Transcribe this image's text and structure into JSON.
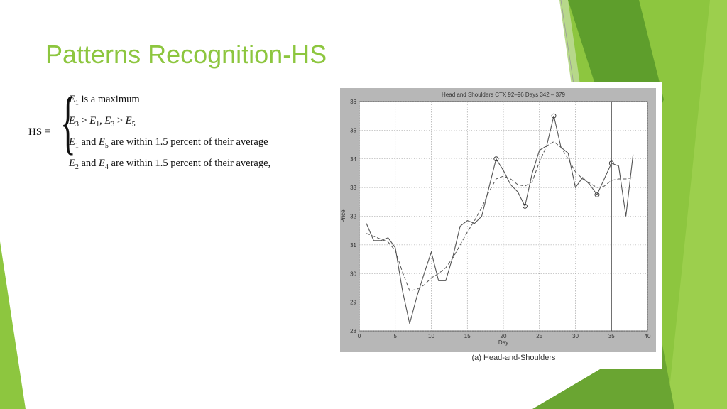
{
  "slide": {
    "title": "Patterns Recognition-HS",
    "accent_color": "#8dc63f",
    "accent_dark": "#5e9e2c"
  },
  "formula": {
    "lhs": "HS ≡",
    "conditions": [
      {
        "e1": "E",
        "s1": "1",
        "t1": " is a maximum"
      },
      {
        "e1": "E",
        "s1": "3",
        "t1": " > ",
        "e2": "E",
        "s2": "1",
        "t2": ", ",
        "e3": "E",
        "s3": "3",
        "t3": " > ",
        "e4": "E",
        "s4": "5"
      },
      {
        "e1": "E",
        "s1": "1",
        "t1": " and ",
        "e2": "E",
        "s2": "5",
        "t2": " are within 1.5 percent of their average"
      },
      {
        "e1": "E",
        "s1": "2",
        "t1": " and ",
        "e2": "E",
        "s2": "4",
        "t2": " are within 1.5 percent of their average,"
      }
    ]
  },
  "figure_caption": "(a) Head-and-Shoulders",
  "chart_data": {
    "type": "line",
    "title": "Head and Shoulders  CTX  92–96  Days 342 – 379",
    "xlabel": "Day",
    "ylabel": "Price",
    "xlim": [
      0,
      40
    ],
    "ylim": [
      28,
      36
    ],
    "xticks": [
      0,
      5,
      10,
      15,
      20,
      25,
      30,
      35,
      40
    ],
    "yticks": [
      28,
      29,
      30,
      31,
      32,
      33,
      34,
      35,
      36
    ],
    "grid": true,
    "series": [
      {
        "style": "solid",
        "x": [
          1,
          2,
          3,
          4,
          5,
          6,
          7,
          8,
          9,
          10,
          11,
          12,
          13,
          14,
          15,
          16,
          17,
          18,
          19,
          20,
          21,
          22,
          23,
          24,
          25,
          26,
          27,
          28,
          29,
          30,
          31,
          32,
          33,
          34,
          35,
          36,
          37,
          38
        ],
        "y": [
          31.75,
          31.15,
          31.15,
          31.25,
          30.9,
          29.4,
          28.25,
          29.2,
          30,
          30.75,
          29.75,
          29.75,
          30.6,
          31.65,
          31.85,
          31.75,
          32,
          33,
          34,
          33.6,
          33.1,
          32.85,
          32.35,
          33.5,
          34.3,
          34.45,
          35.5,
          34.4,
          34.2,
          33,
          33.35,
          33.1,
          32.75,
          33.3,
          33.85,
          33.75,
          32,
          34.15
        ]
      },
      {
        "style": "dashed",
        "x": [
          1,
          2,
          3,
          4,
          5,
          6,
          7,
          8,
          9,
          10,
          11,
          12,
          13,
          14,
          15,
          16,
          17,
          18,
          19,
          20,
          21,
          22,
          23,
          24,
          25,
          26,
          27,
          28,
          29,
          30,
          31,
          32,
          33,
          34,
          35,
          36,
          37,
          38
        ],
        "y": [
          31.4,
          31.3,
          31.2,
          31.1,
          30.8,
          30.05,
          29.4,
          29.45,
          29.6,
          29.85,
          30.0,
          30.2,
          30.55,
          31.0,
          31.45,
          31.85,
          32.3,
          32.85,
          33.3,
          33.4,
          33.3,
          33.1,
          33.05,
          33.2,
          33.9,
          34.45,
          34.6,
          34.4,
          34.0,
          33.55,
          33.3,
          33.15,
          33.0,
          33.05,
          33.25,
          33.3,
          33.3,
          33.35
        ]
      }
    ],
    "markers": [
      {
        "x": 19,
        "y": 34.0
      },
      {
        "x": 23,
        "y": 32.35
      },
      {
        "x": 27,
        "y": 35.5
      },
      {
        "x": 33,
        "y": 32.75
      },
      {
        "x": 35,
        "y": 33.85
      }
    ],
    "vline": {
      "x": 35
    }
  }
}
